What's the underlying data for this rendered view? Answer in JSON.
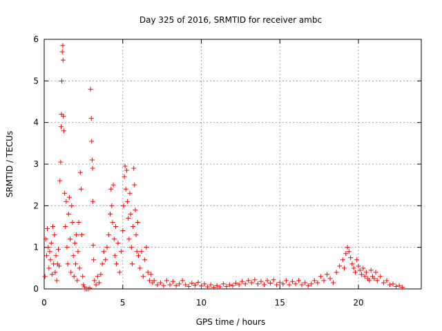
{
  "chart_data": {
    "type": "scatter",
    "title": "Day 325 of 2016, SRMTID for receiver ambc",
    "xlabel": "GPS time / hours",
    "ylabel": "SRMTID / TECUs",
    "xlim": [
      0,
      24
    ],
    "ylim": [
      0,
      6
    ],
    "xticks": [
      "0",
      "5",
      "10",
      "15",
      "20"
    ],
    "yticks": [
      "0",
      "1",
      "2",
      "3",
      "4",
      "5",
      "6"
    ],
    "grid": true,
    "marker": "plus",
    "color": "#ff0000",
    "series": [
      {
        "points": [
          [
            0.05,
            0.3
          ],
          [
            0.1,
            1.2
          ],
          [
            0.15,
            0.8
          ],
          [
            0.2,
            1.45
          ],
          [
            0.25,
            1.0
          ],
          [
            0.3,
            0.5
          ],
          [
            0.35,
            0.9
          ],
          [
            0.4,
            0.7
          ],
          [
            0.45,
            1.1
          ],
          [
            0.5,
            0.35
          ],
          [
            0.55,
            1.5
          ],
          [
            0.6,
            0.6
          ],
          [
            0.65,
            1.3
          ],
          [
            0.7,
            0.4
          ],
          [
            0.75,
            0.8
          ],
          [
            0.8,
            0.2
          ],
          [
            0.85,
            0.6
          ],
          [
            0.9,
            0.95
          ],
          [
            0.95,
            0.55
          ],
          [
            1.0,
            2.6
          ],
          [
            1.05,
            3.05
          ],
          [
            1.08,
            3.9
          ],
          [
            1.1,
            4.2
          ],
          [
            1.12,
            5.0
          ],
          [
            1.15,
            5.7
          ],
          [
            1.18,
            5.85
          ],
          [
            1.2,
            5.5
          ],
          [
            1.22,
            4.15
          ],
          [
            1.25,
            3.8
          ],
          [
            1.3,
            2.3
          ],
          [
            1.35,
            1.5
          ],
          [
            1.4,
            2.1
          ],
          [
            1.45,
            1.0
          ],
          [
            1.5,
            0.6
          ],
          [
            1.55,
            1.8
          ],
          [
            1.6,
            2.2
          ],
          [
            1.65,
            1.2
          ],
          [
            1.7,
            0.4
          ],
          [
            1.75,
            2.0
          ],
          [
            1.8,
            1.6
          ],
          [
            1.85,
            0.8
          ],
          [
            1.9,
            0.3
          ],
          [
            1.95,
            1.1
          ],
          [
            2.0,
            0.6
          ],
          [
            2.05,
            1.3
          ],
          [
            2.1,
            0.2
          ],
          [
            2.15,
            0.9
          ],
          [
            2.2,
            1.6
          ],
          [
            2.25,
            0.5
          ],
          [
            2.3,
            2.8
          ],
          [
            2.35,
            2.4
          ],
          [
            2.4,
            1.3
          ],
          [
            2.45,
            0.3
          ],
          [
            2.5,
            0.1
          ],
          [
            2.55,
            0.05
          ],
          [
            2.6,
            0.0
          ],
          [
            2.7,
            0.0
          ],
          [
            2.8,
            0.0
          ],
          [
            2.9,
            0.02
          ],
          [
            2.95,
            4.8
          ],
          [
            3.0,
            4.1
          ],
          [
            3.02,
            3.55
          ],
          [
            3.05,
            3.1
          ],
          [
            3.08,
            2.9
          ],
          [
            3.1,
            2.1
          ],
          [
            3.12,
            1.05
          ],
          [
            3.15,
            0.7
          ],
          [
            3.2,
            0.2
          ],
          [
            3.3,
            0.1
          ],
          [
            3.4,
            0.3
          ],
          [
            3.5,
            0.15
          ],
          [
            3.6,
            0.35
          ],
          [
            3.7,
            0.6
          ],
          [
            3.8,
            0.9
          ],
          [
            3.9,
            0.7
          ],
          [
            4.0,
            1.0
          ],
          [
            4.1,
            1.3
          ],
          [
            4.2,
            1.8
          ],
          [
            4.25,
            2.4
          ],
          [
            4.3,
            2.0
          ],
          [
            4.35,
            1.6
          ],
          [
            4.4,
            2.5
          ],
          [
            4.45,
            1.2
          ],
          [
            4.5,
            0.8
          ],
          [
            4.55,
            1.5
          ],
          [
            4.6,
            0.6
          ],
          [
            4.7,
            1.1
          ],
          [
            4.8,
            0.4
          ],
          [
            4.9,
            0.9
          ],
          [
            5.0,
            1.4
          ],
          [
            5.05,
            2.0
          ],
          [
            5.1,
            2.7
          ],
          [
            5.15,
            2.95
          ],
          [
            5.2,
            2.4
          ],
          [
            5.25,
            2.85
          ],
          [
            5.3,
            2.1
          ],
          [
            5.35,
            1.7
          ],
          [
            5.4,
            1.2
          ],
          [
            5.45,
            2.3
          ],
          [
            5.5,
            1.8
          ],
          [
            5.55,
            1.0
          ],
          [
            5.6,
            0.6
          ],
          [
            5.65,
            1.5
          ],
          [
            5.7,
            2.9
          ],
          [
            5.75,
            2.5
          ],
          [
            5.8,
            1.9
          ],
          [
            5.85,
            1.3
          ],
          [
            5.9,
            0.9
          ],
          [
            5.95,
            1.6
          ],
          [
            6.0,
            0.8
          ],
          [
            6.1,
            0.5
          ],
          [
            6.2,
            0.9
          ],
          [
            6.3,
            0.3
          ],
          [
            6.4,
            0.7
          ],
          [
            6.5,
            1.0
          ],
          [
            6.6,
            0.4
          ],
          [
            6.7,
            0.2
          ],
          [
            6.8,
            0.35
          ],
          [
            6.9,
            0.15
          ],
          [
            7.0,
            0.2
          ],
          [
            7.2,
            0.1
          ],
          [
            7.4,
            0.15
          ],
          [
            7.6,
            0.08
          ],
          [
            7.8,
            0.2
          ],
          [
            8.0,
            0.1
          ],
          [
            8.2,
            0.18
          ],
          [
            8.4,
            0.08
          ],
          [
            8.6,
            0.12
          ],
          [
            8.8,
            0.2
          ],
          [
            9.0,
            0.1
          ],
          [
            9.2,
            0.06
          ],
          [
            9.4,
            0.14
          ],
          [
            9.6,
            0.09
          ],
          [
            9.8,
            0.16
          ],
          [
            10.0,
            0.07
          ],
          [
            10.2,
            0.12
          ],
          [
            10.4,
            0.05
          ],
          [
            10.6,
            0.1
          ],
          [
            10.8,
            0.04
          ],
          [
            11.0,
            0.08
          ],
          [
            11.2,
            0.05
          ],
          [
            11.4,
            0.12
          ],
          [
            11.6,
            0.06
          ],
          [
            11.8,
            0.1
          ],
          [
            12.0,
            0.08
          ],
          [
            12.2,
            0.14
          ],
          [
            12.4,
            0.1
          ],
          [
            12.6,
            0.18
          ],
          [
            12.8,
            0.12
          ],
          [
            13.0,
            0.2
          ],
          [
            13.2,
            0.15
          ],
          [
            13.4,
            0.22
          ],
          [
            13.6,
            0.12
          ],
          [
            13.8,
            0.18
          ],
          [
            14.0,
            0.1
          ],
          [
            14.2,
            0.2
          ],
          [
            14.4,
            0.14
          ],
          [
            14.6,
            0.22
          ],
          [
            14.8,
            0.1
          ],
          [
            15.0,
            0.16
          ],
          [
            15.2,
            0.12
          ],
          [
            15.4,
            0.2
          ],
          [
            15.6,
            0.1
          ],
          [
            15.8,
            0.18
          ],
          [
            16.0,
            0.12
          ],
          [
            16.2,
            0.2
          ],
          [
            16.4,
            0.1
          ],
          [
            16.6,
            0.15
          ],
          [
            16.8,
            0.08
          ],
          [
            17.0,
            0.12
          ],
          [
            17.2,
            0.2
          ],
          [
            17.4,
            0.15
          ],
          [
            17.6,
            0.3
          ],
          [
            17.8,
            0.2
          ],
          [
            18.0,
            0.35
          ],
          [
            18.2,
            0.25
          ],
          [
            18.4,
            0.15
          ],
          [
            18.6,
            0.4
          ],
          [
            18.8,
            0.55
          ],
          [
            19.0,
            0.7
          ],
          [
            19.1,
            0.5
          ],
          [
            19.2,
            0.85
          ],
          [
            19.3,
            1.0
          ],
          [
            19.4,
            0.9
          ],
          [
            19.5,
            0.75
          ],
          [
            19.6,
            0.6
          ],
          [
            19.7,
            0.5
          ],
          [
            19.8,
            0.4
          ],
          [
            19.9,
            0.7
          ],
          [
            20.0,
            0.55
          ],
          [
            20.1,
            0.45
          ],
          [
            20.2,
            0.35
          ],
          [
            20.3,
            0.5
          ],
          [
            20.4,
            0.3
          ],
          [
            20.5,
            0.4
          ],
          [
            20.6,
            0.25
          ],
          [
            20.7,
            0.2
          ],
          [
            20.8,
            0.45
          ],
          [
            20.9,
            0.3
          ],
          [
            21.0,
            0.25
          ],
          [
            21.1,
            0.4
          ],
          [
            21.2,
            0.2
          ],
          [
            21.4,
            0.3
          ],
          [
            21.6,
            0.15
          ],
          [
            21.8,
            0.2
          ],
          [
            22.0,
            0.1
          ],
          [
            22.2,
            0.12
          ],
          [
            22.4,
            0.06
          ],
          [
            22.6,
            0.08
          ],
          [
            22.8,
            0.04
          ]
        ]
      }
    ]
  }
}
